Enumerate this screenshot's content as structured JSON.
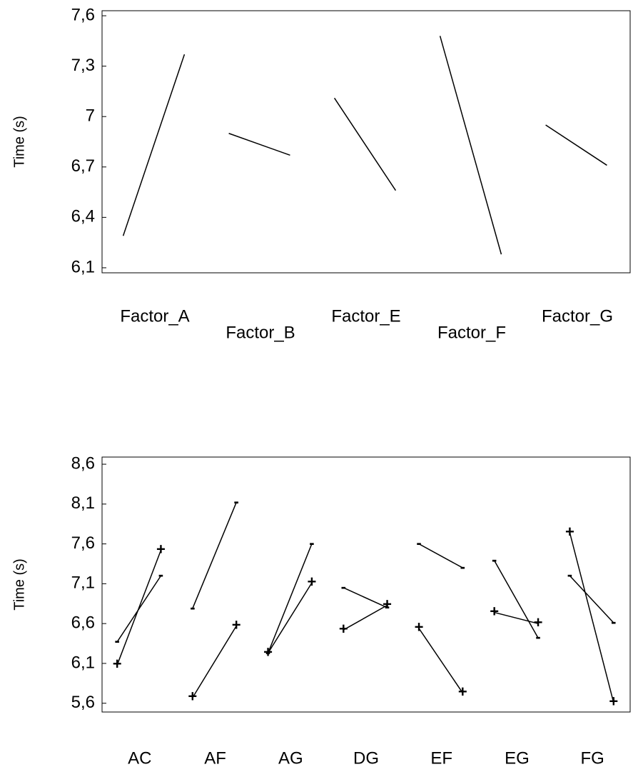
{
  "chart_data": [
    {
      "type": "line",
      "ylabel": "Time (s)",
      "color": "#000000",
      "categories": [
        "Factor_A",
        "Factor_B",
        "Factor_E",
        "Factor_F",
        "Factor_G"
      ],
      "values": [
        [
          6.29,
          7.37
        ],
        [
          6.9,
          6.77
        ],
        [
          7.11,
          6.56
        ],
        [
          7.48,
          6.18
        ],
        [
          6.95,
          6.71
        ]
      ],
      "ylim": [
        6.07,
        7.63
      ],
      "yticks": [
        {
          "value": 6.1,
          "label": "6,1"
        },
        {
          "value": 6.4,
          "label": "6,4"
        },
        {
          "value": 6.7,
          "label": "6,7"
        },
        7,
        {
          "value": 7.3,
          "label": "7,3"
        },
        {
          "value": 7.6,
          "label": "7,6"
        }
      ]
    },
    {
      "type": "interaction",
      "ylabel": "Time (s)",
      "color": "#000000",
      "categories": [
        "AC",
        "AF",
        "AG",
        "DG",
        "EF",
        "EG",
        "FG"
      ],
      "series": [
        {
          "name": "-",
          "values": [
            [
              6.37,
              7.2
            ],
            [
              6.79,
              8.12
            ],
            [
              6.23,
              7.6
            ],
            [
              7.05,
              6.8
            ],
            [
              7.6,
              7.3
            ],
            [
              7.39,
              6.42
            ],
            [
              7.2,
              6.61
            ]
          ]
        },
        {
          "name": "+",
          "values": [
            [
              6.08,
              7.52
            ],
            [
              5.67,
              6.57
            ],
            [
              6.23,
              7.11
            ],
            [
              6.52,
              6.83
            ],
            [
              6.54,
              5.73
            ],
            [
              6.74,
              6.6
            ],
            [
              7.74,
              5.61
            ]
          ]
        }
      ],
      "ylim": [
        5.49,
        8.69
      ],
      "yticks": [
        {
          "value": 5.6,
          "label": "5,6"
        },
        {
          "value": 6.1,
          "label": "6,1"
        },
        {
          "value": 6.6,
          "label": "6,6"
        },
        {
          "value": 7.1,
          "label": "7,1"
        },
        {
          "value": 7.6,
          "label": "7,6"
        },
        {
          "value": 8.1,
          "label": "8,1"
        },
        {
          "value": 8.6,
          "label": "8,6"
        }
      ]
    }
  ]
}
